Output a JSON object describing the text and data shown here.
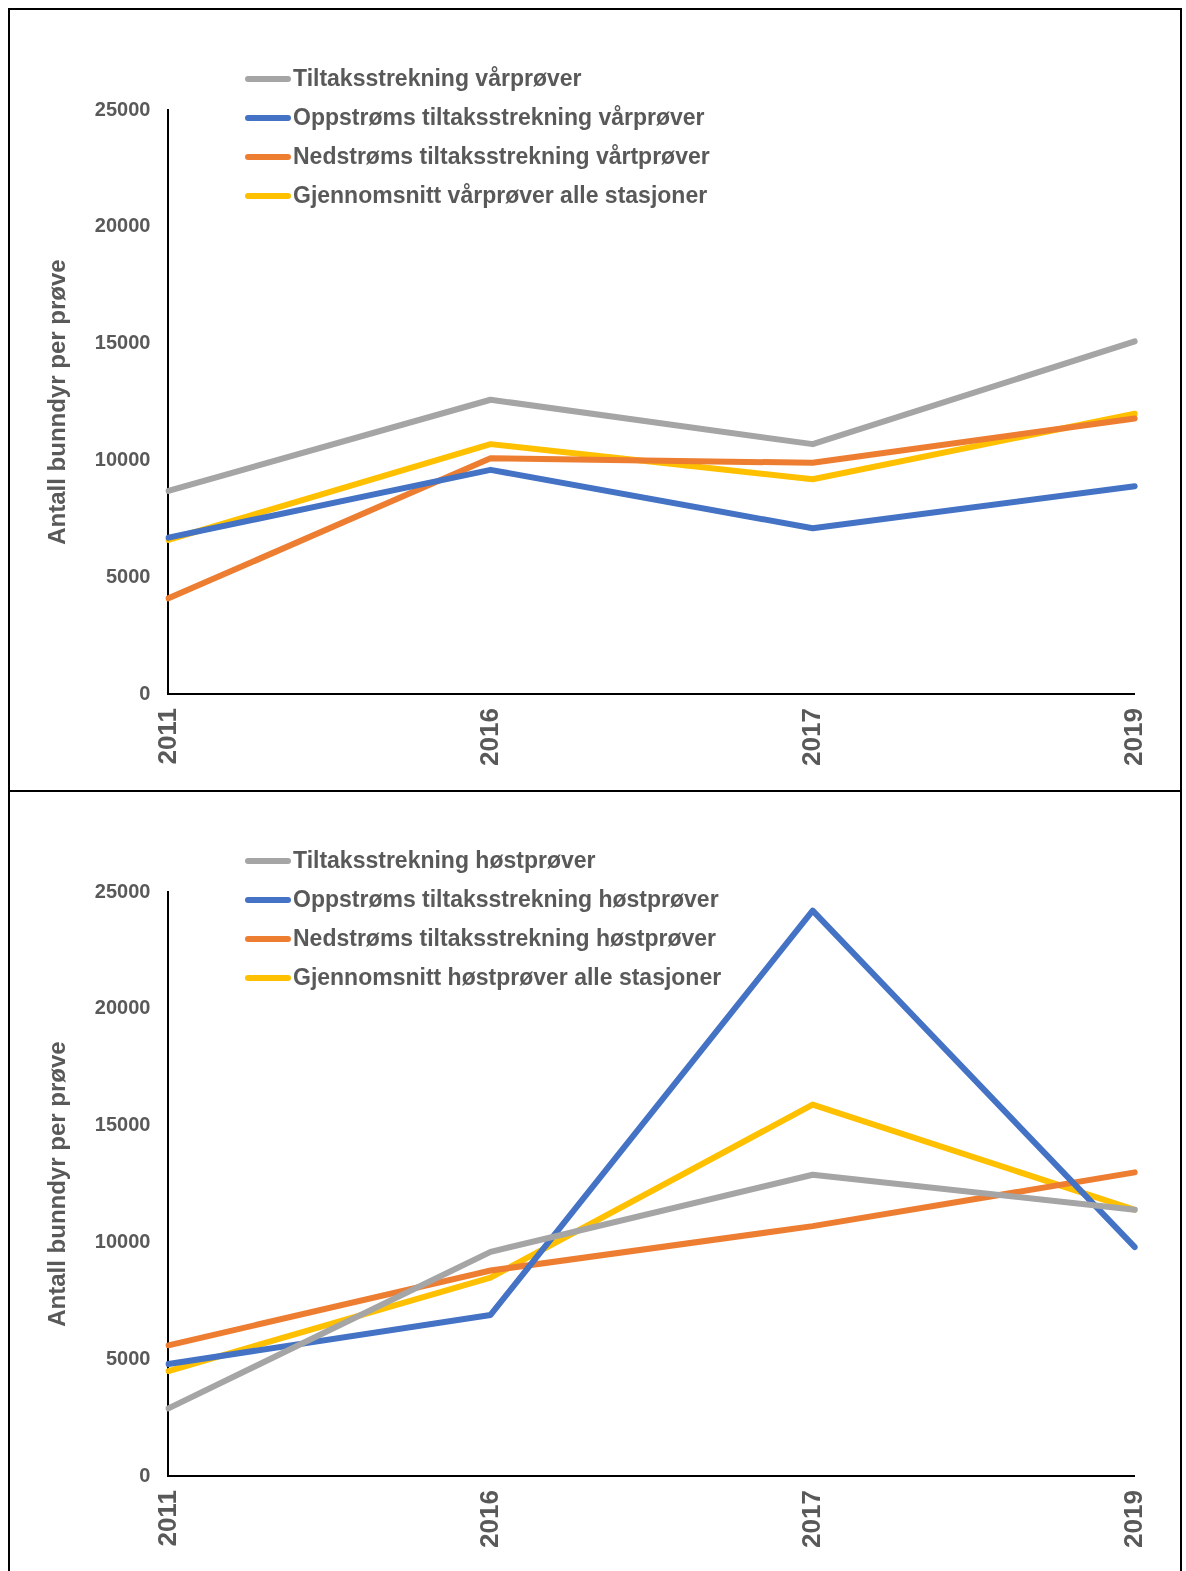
{
  "chart_data": [
    {
      "type": "line",
      "ylabel": "Antall bunndyr per prøve",
      "categories": [
        "2011",
        "2016",
        "2017",
        "2019"
      ],
      "ylim": [
        0,
        25000
      ],
      "yticks": [
        0,
        5000,
        10000,
        15000,
        20000,
        25000
      ],
      "legend": "top left",
      "marker": "none",
      "series": [
        {
          "name": "Tiltaksstrekning vårprøver",
          "color": "#a5a5a5",
          "values": [
            8700,
            12600,
            10700,
            15100
          ]
        },
        {
          "name": "Oppstrøms tiltaksstrekning vårprøver",
          "color": "#4472c4",
          "values": [
            6700,
            9600,
            7100,
            8900
          ]
        },
        {
          "name": "Nedstrøms tiltaksstrekning vårtprøver",
          "color": "#ed7d31",
          "values": [
            4100,
            10100,
            9900,
            11800
          ]
        },
        {
          "name": "Gjennomsnitt vårprøver alle stasjoner",
          "color": "#ffc000",
          "values": [
            6600,
            10700,
            9200,
            12000
          ]
        }
      ]
    },
    {
      "type": "line",
      "ylabel": "Antall bunndyr per prøve",
      "categories": [
        "2011",
        "2016",
        "2017",
        "2019"
      ],
      "ylim": [
        0,
        25000
      ],
      "yticks": [
        0,
        5000,
        10000,
        15000,
        20000,
        25000
      ],
      "legend": "top left",
      "marker": "none",
      "series": [
        {
          "name": "Tiltaksstrekning høstprøver",
          "color": "#a5a5a5",
          "values": [
            2900,
            9600,
            12900,
            11400
          ]
        },
        {
          "name": "Oppstrøms tiltaksstrekning høstprøver",
          "color": "#4472c4",
          "values": [
            4800,
            6900,
            24200,
            9800
          ]
        },
        {
          "name": "Nedstrøms tiltaksstrekning høstprøver",
          "color": "#ed7d31",
          "values": [
            5600,
            8800,
            10700,
            13000
          ]
        },
        {
          "name": "Gjennomsnitt høstprøver alle stasjoner",
          "color": "#ffc000",
          "values": [
            4500,
            8500,
            15900,
            11400
          ]
        }
      ]
    }
  ]
}
